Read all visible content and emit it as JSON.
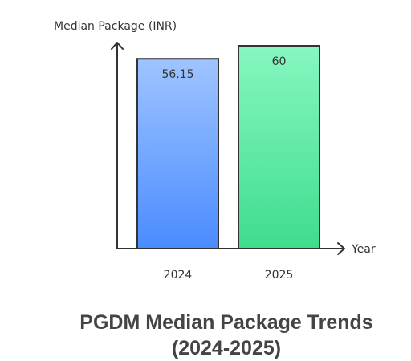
{
  "chart_data": {
    "type": "bar",
    "title": [
      "PGDM Median Package Trends",
      "(2024-2025)"
    ],
    "xlabel": "Year",
    "ylabel": "Median Package (INR)",
    "categories": [
      "2024",
      "2025"
    ],
    "values": [
      56.15,
      60
    ],
    "value_labels": [
      "56.15",
      "60"
    ],
    "ylim": [
      0,
      60
    ],
    "grid": false,
    "legend": "none",
    "colors": [
      {
        "top": "#9fc4ff",
        "bottom": "#4a8cff"
      },
      {
        "top": "#86f7c0",
        "bottom": "#3fdc8e"
      }
    ],
    "bar_stroke": "#333333",
    "axis_color": "#333333"
  }
}
